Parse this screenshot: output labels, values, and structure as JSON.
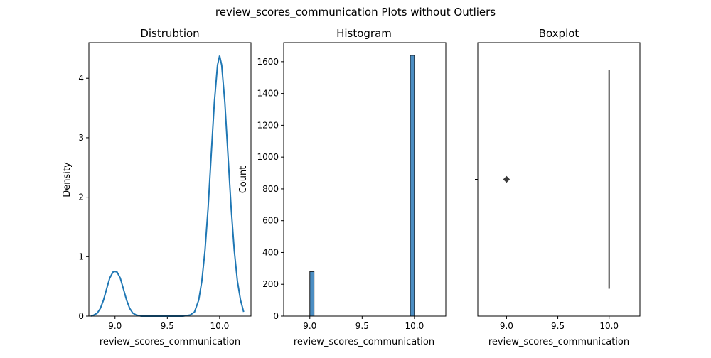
{
  "figure": {
    "suptitle": "review_scores_communication Plots without Outliers"
  },
  "chart_data": [
    {
      "type": "line",
      "title": "Distrubtion",
      "xlabel": "review_scores_communication",
      "ylabel": "Density",
      "xlim": [
        8.75,
        10.3
      ],
      "ylim": [
        0,
        4.6
      ],
      "xticks": [
        9.0,
        9.5,
        10.0
      ],
      "xtick_labels": [
        "9.0",
        "9.5",
        "10.0"
      ],
      "yticks": [
        0,
        1,
        2,
        3,
        4
      ],
      "ytick_labels": [
        "0",
        "1",
        "2",
        "3",
        "4"
      ],
      "color": "#1f77b4",
      "series": [
        {
          "x": [
            8.77,
            8.8,
            8.83,
            8.86,
            8.89,
            8.92,
            8.95,
            8.98,
            9.0,
            9.02,
            9.05,
            9.08,
            9.11,
            9.14,
            9.17,
            9.2,
            9.25,
            9.35,
            9.5,
            9.65,
            9.72,
            9.76,
            9.8,
            9.83,
            9.86,
            9.89,
            9.92,
            9.95,
            9.98,
            10.0,
            10.02,
            10.05,
            10.08,
            10.11,
            10.14,
            10.17,
            10.2,
            10.23
          ],
          "y": [
            0.0,
            0.02,
            0.05,
            0.13,
            0.27,
            0.46,
            0.64,
            0.74,
            0.75,
            0.74,
            0.64,
            0.46,
            0.27,
            0.13,
            0.05,
            0.02,
            0.0,
            0.0,
            0.0,
            0.0,
            0.02,
            0.07,
            0.27,
            0.59,
            1.1,
            1.82,
            2.72,
            3.6,
            4.22,
            4.38,
            4.22,
            3.6,
            2.72,
            1.82,
            1.1,
            0.59,
            0.27,
            0.07
          ]
        }
      ]
    },
    {
      "type": "bar",
      "title": "Histogram",
      "xlabel": "review_scores_communication",
      "ylabel": "Count",
      "xlim": [
        8.75,
        10.3
      ],
      "ylim": [
        0,
        1720
      ],
      "xticks": [
        9.0,
        9.5,
        10.0
      ],
      "xtick_labels": [
        "9.0",
        "9.5",
        "10.0"
      ],
      "yticks": [
        0,
        200,
        400,
        600,
        800,
        1000,
        1200,
        1400,
        1600
      ],
      "ytick_labels": [
        "0",
        "200",
        "400",
        "600",
        "800",
        "1000",
        "1200",
        "1400",
        "1600"
      ],
      "color": "#4c8ec3",
      "bars": [
        {
          "x0": 9.0,
          "x1": 9.04,
          "value": 280
        },
        {
          "x0": 9.96,
          "x1": 10.0,
          "value": 1640
        }
      ]
    },
    {
      "type": "box",
      "title": "Boxplot",
      "xlabel": "review_scores_communication",
      "xlim": [
        8.72,
        10.3
      ],
      "xticks": [
        9.0,
        9.5,
        10.0
      ],
      "xtick_labels": [
        "9.0",
        "9.5",
        "10.0"
      ],
      "box": {
        "q1": 10.0,
        "median": 10.0,
        "q3": 10.0,
        "whisker_low": 10.0,
        "whisker_high": 10.0
      },
      "outliers": [
        9.0
      ]
    }
  ]
}
